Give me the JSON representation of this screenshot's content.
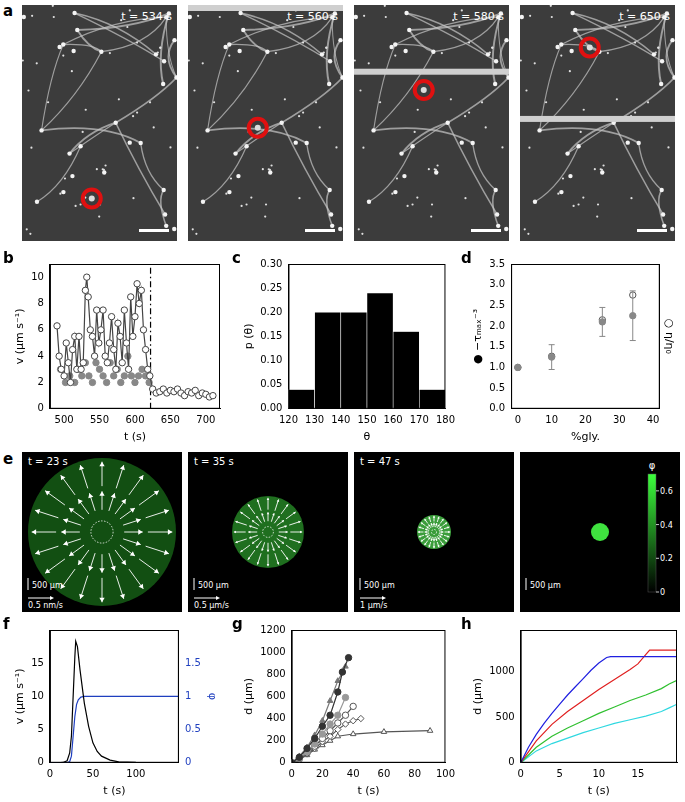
{
  "chart_data": [
    {
      "type": "scatter",
      "title": "b",
      "xlabel": "t (s)",
      "ylabel": "v (µm s⁻¹)",
      "xlim": [
        480,
        720
      ],
      "xticks": [
        500,
        550,
        600,
        650,
        700
      ],
      "ylim": [
        0,
        11
      ],
      "yticks": [
        0,
        2,
        4,
        6,
        8,
        10
      ],
      "series": [
        {
          "color": "#444444",
          "marker": "open_circle",
          "line_style": "solid",
          "x": [
            490,
            493,
            496,
            500,
            503,
            506,
            509,
            512,
            515,
            518,
            521,
            524,
            527,
            530,
            532,
            534,
            537,
            540,
            543,
            546,
            549,
            552,
            555,
            558,
            561,
            564,
            567,
            570,
            573,
            576,
            579,
            582,
            585,
            588,
            591,
            594,
            597,
            600,
            603,
            606,
            609,
            612,
            615,
            618,
            621,
            625,
            630,
            635,
            640,
            645,
            650,
            655,
            660,
            665,
            670,
            675,
            680,
            685,
            690,
            695,
            700,
            705,
            710
          ],
          "values": [
            6.3,
            4.0,
            3.0,
            2.5,
            5.0,
            3.5,
            2.0,
            4.5,
            5.5,
            3.0,
            5.5,
            3.0,
            3.5,
            9.0,
            10.0,
            8.5,
            6.0,
            5.5,
            4.0,
            7.5,
            5.0,
            6.0,
            7.5,
            4.0,
            3.5,
            5.0,
            7.0,
            4.5,
            3.0,
            6.5,
            5.5,
            3.5,
            7.5,
            5.0,
            3.0,
            8.5,
            5.5,
            7.0,
            9.5,
            8.0,
            9.0,
            6.0,
            4.5,
            3.0,
            2.5,
            1.5,
            1.2,
            1.3,
            1.5,
            1.2,
            1.4,
            1.3,
            1.5,
            1.2,
            1.0,
            1.3,
            1.2,
            1.4,
            1.0,
            1.2,
            1.1,
            0.9,
            1.0
          ]
        },
        {
          "color": "#888888",
          "marker": "circle",
          "line_style": "none",
          "x": [
            495,
            502,
            508,
            515,
            520,
            525,
            530,
            535,
            540,
            545,
            550,
            555,
            560,
            565,
            570,
            575,
            580,
            585,
            590,
            595,
            600,
            605,
            610,
            615,
            620
          ],
          "values": [
            3.0,
            2.0,
            2.5,
            2.0,
            3.0,
            2.5,
            3.5,
            2.5,
            2.0,
            3.5,
            3.0,
            2.5,
            2.0,
            3.5,
            2.5,
            3.0,
            2.0,
            2.5,
            4.0,
            2.5,
            2.0,
            2.5,
            3.0,
            2.5,
            2.0
          ]
        },
        {
          "color": "#000000",
          "marker": "none",
          "line_style": "dashdot",
          "x": [
            622,
            622
          ],
          "values": [
            0,
            11
          ]
        }
      ]
    },
    {
      "type": "histogram",
      "title": "c",
      "xlabel": "θ",
      "ylabel": "p (θ)",
      "bins": [
        120,
        130,
        140,
        150,
        160,
        170,
        180
      ],
      "values": [
        0.04,
        0.2,
        0.2,
        0.24,
        0.16,
        0.04
      ],
      "color": "#000000",
      "xlim": [
        120,
        180
      ],
      "xticks": [
        120,
        130,
        140,
        150,
        160,
        170,
        180
      ],
      "ylim": [
        0,
        0.3
      ],
      "yticks": [
        {
          "value": 0,
          "label": "0.00"
        },
        0.05,
        {
          "value": 0.1,
          "label": "0.10"
        },
        0.15,
        {
          "value": 0.2,
          "label": "0.20"
        },
        0.25,
        {
          "value": 0.3,
          "label": "0.30"
        }
      ]
    },
    {
      "type": "scatter",
      "title": "d",
      "xlabel": "%gly.",
      "ylabel": "● −τₘₐₓ⁻³",
      "y2label": "○ η/η₀",
      "xlim": [
        -2,
        42
      ],
      "xticks": [
        0,
        10,
        20,
        30,
        40
      ],
      "ylim": [
        0,
        3.5
      ],
      "yticks": [
        {
          "value": 0,
          "label": "0.0"
        },
        0.5,
        {
          "value": 1,
          "label": "1.0"
        },
        1.5,
        {
          "value": 2,
          "label": "2.0"
        },
        2.5,
        {
          "value": 3,
          "label": "3.0"
        },
        3.5
      ],
      "series": [
        {
          "color": "#888888",
          "marker": "circle",
          "line_style": "none",
          "x": [
            0,
            10,
            25,
            34
          ],
          "values": [
            1.0,
            1.25,
            2.1,
            2.25
          ],
          "errors": [
            0,
            0.3,
            0.35,
            0.6
          ]
        },
        {
          "color": "#555555",
          "marker": "open_circle",
          "line_style": "none",
          "x": [
            0,
            10,
            25,
            34
          ],
          "values": [
            1.0,
            1.27,
            2.15,
            2.75
          ]
        }
      ]
    },
    {
      "type": "line",
      "title": "f",
      "xlabel": "t (s)",
      "ylabel": "v (µm s⁻¹)",
      "y2label": "φ",
      "xlim": [
        0,
        150
      ],
      "xticks": [
        0,
        50,
        100
      ],
      "ylim": [
        0,
        20
      ],
      "yticks": [
        0,
        5,
        10,
        15
      ],
      "y2lim": [
        0,
        2
      ],
      "y2ticks": [
        0,
        0.5,
        1,
        1.5
      ],
      "series": [
        {
          "color": "#000000",
          "marker": "none",
          "line_style": "solid",
          "x": [
            0,
            10,
            15,
            20,
            23,
            25,
            27,
            29,
            30,
            32,
            35,
            40,
            45,
            50,
            55,
            60,
            70,
            80,
            100,
            150
          ],
          "values": [
            0,
            0,
            0.05,
            0.3,
            1.5,
            4,
            10,
            16,
            18.3,
            17.5,
            14,
            9,
            5.5,
            3,
            1.7,
            1,
            0.4,
            0.15,
            0.05,
            0
          ]
        },
        {
          "color": "#1f3fbf",
          "marker": "none",
          "line_style": "solid",
          "axis": "y2",
          "x": [
            0,
            20,
            23,
            25,
            27,
            29,
            31,
            33,
            36,
            40,
            150
          ],
          "values": [
            0,
            0,
            0.02,
            0.1,
            0.4,
            0.7,
            0.88,
            0.95,
            0.99,
            1.0,
            1.0
          ]
        }
      ]
    },
    {
      "type": "scatter",
      "title": "g",
      "xlabel": "t (s)",
      "ylabel": "d (µm)",
      "xlim": [
        0,
        100
      ],
      "xticks": [
        0,
        20,
        40,
        60,
        80,
        100
      ],
      "ylim": [
        0,
        1200
      ],
      "yticks": [
        0,
        200,
        400,
        600,
        800,
        1000,
        1200
      ],
      "series": [
        {
          "color": "#333333",
          "marker": "circle",
          "line_style": "solid",
          "x": [
            0,
            5,
            10,
            15,
            20,
            25,
            30,
            33,
            37
          ],
          "values": [
            0,
            50,
            130,
            220,
            330,
            430,
            640,
            820,
            950
          ]
        },
        {
          "color": "#777777",
          "marker": "triangle",
          "line_style": "solid",
          "x": [
            0,
            5,
            10,
            15,
            20,
            25,
            30,
            35
          ],
          "values": [
            0,
            60,
            140,
            250,
            380,
            560,
            740,
            870
          ]
        },
        {
          "color": "#999999",
          "marker": "circle",
          "line_style": "solid",
          "x": [
            0,
            5,
            10,
            15,
            20,
            25,
            30,
            35
          ],
          "values": [
            0,
            40,
            100,
            170,
            260,
            350,
            430,
            590
          ]
        },
        {
          "color": "#555555",
          "marker": "open_circle",
          "line_style": "solid",
          "x": [
            0,
            5,
            10,
            15,
            20,
            25,
            30,
            35,
            40
          ],
          "values": [
            0,
            40,
            90,
            150,
            220,
            290,
            360,
            430,
            510
          ]
        },
        {
          "color": "#555555",
          "marker": "open_diamond",
          "line_style": "solid",
          "x": [
            0,
            5,
            10,
            15,
            20,
            25,
            30,
            35,
            40,
            45
          ],
          "values": [
            0,
            30,
            80,
            130,
            190,
            240,
            300,
            350,
            380,
            400
          ]
        },
        {
          "color": "#555555",
          "marker": "open_triangle",
          "line_style": "solid",
          "x": [
            0,
            5,
            10,
            15,
            20,
            25,
            30,
            40,
            60,
            90
          ],
          "values": [
            0,
            30,
            70,
            120,
            160,
            200,
            240,
            260,
            280,
            290
          ]
        }
      ]
    },
    {
      "type": "line",
      "title": "h",
      "xlabel": "t (s)",
      "ylabel": "d (µm)",
      "xlim": [
        0,
        20
      ],
      "xticks": [
        0,
        5,
        10,
        15
      ],
      "ylim": [
        0,
        1450
      ],
      "yticks": [
        0,
        500,
        1000
      ],
      "series": [
        {
          "color": "#2020e0",
          "marker": "none",
          "line_style": "solid",
          "x": [
            0,
            1,
            2,
            3,
            4,
            5,
            6,
            7,
            8,
            9,
            10,
            11,
            11.5,
            20
          ],
          "values": [
            0,
            170,
            310,
            430,
            540,
            640,
            740,
            830,
            920,
            1010,
            1090,
            1150,
            1160,
            1160
          ]
        },
        {
          "color": "#e02020",
          "marker": "none",
          "line_style": "solid",
          "x": [
            0,
            2,
            4,
            6,
            8,
            10,
            12,
            14,
            15,
            16,
            16.5,
            20
          ],
          "values": [
            0,
            240,
            420,
            560,
            680,
            800,
            910,
            1020,
            1080,
            1180,
            1230,
            1230
          ]
        },
        {
          "color": "#30c030",
          "marker": "none",
          "line_style": "solid",
          "x": [
            0,
            2,
            4,
            6,
            8,
            10,
            12,
            14,
            16,
            18,
            19,
            20
          ],
          "values": [
            0,
            170,
            290,
            380,
            460,
            540,
            610,
            680,
            740,
            810,
            860,
            900
          ]
        },
        {
          "color": "#30d8e0",
          "marker": "none",
          "line_style": "solid",
          "x": [
            0,
            2,
            4,
            6,
            8,
            10,
            12,
            14,
            16,
            18,
            19,
            20
          ],
          "values": [
            0,
            130,
            210,
            270,
            330,
            380,
            430,
            470,
            510,
            560,
            600,
            640
          ]
        }
      ]
    }
  ],
  "figures": [
    {
      "title": "a",
      "frames": [
        {
          "label": "t = 534 s"
        },
        {
          "label": "t = 560 s"
        },
        {
          "label": "t = 580 s"
        },
        {
          "label": "t = 650 s"
        }
      ]
    },
    {
      "title": "e",
      "frames": [
        {
          "label": "t = 23 s",
          "scale": "500 µm",
          "arrow_scale": "0.5 nm/s"
        },
        {
          "label": "t = 35 s",
          "scale": "500 µm",
          "arrow_scale": "0.5 µm/s"
        },
        {
          "label": "t = 47 s",
          "scale": "500 µm",
          "arrow_scale": "1 µm/s"
        },
        {
          "scale": "500 µm"
        }
      ],
      "colorbar": {
        "label": "φ",
        "range": [
          0,
          0.7
        ],
        "ticks": [
          0,
          0.2,
          0.4,
          0.6
        ]
      }
    }
  ]
}
